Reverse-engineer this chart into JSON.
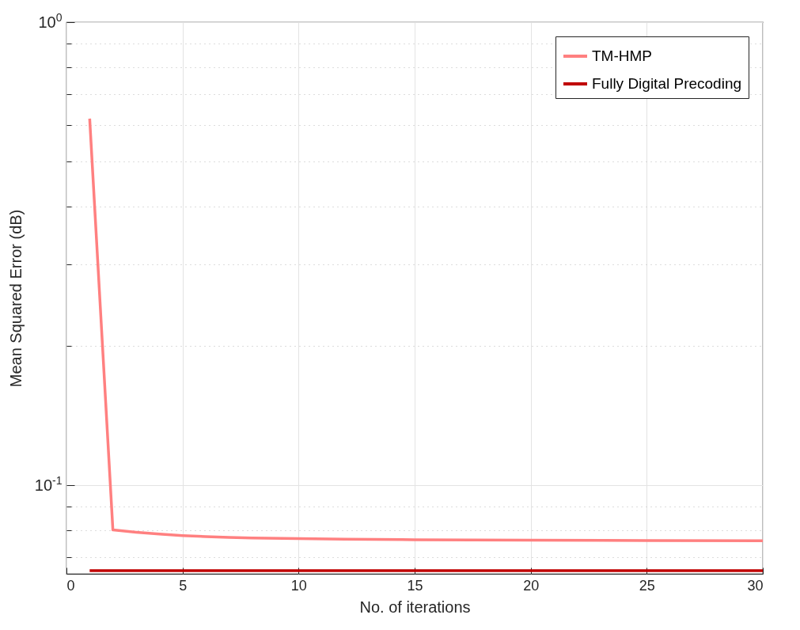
{
  "chart_data": {
    "type": "line",
    "xlabel": "No. of iterations",
    "ylabel": "Mean Squared Error (dB)",
    "x": [
      1,
      2,
      3,
      4,
      5,
      6,
      7,
      8,
      10,
      12,
      15,
      20,
      25,
      30
    ],
    "series": [
      {
        "name": "TM-HMP",
        "color": "#ff8080",
        "values": [
          0.619,
          0.0802,
          0.0793,
          0.0786,
          0.078,
          0.0776,
          0.0773,
          0.0771,
          0.0768,
          0.0766,
          0.0764,
          0.0762,
          0.0761,
          0.076
        ]
      },
      {
        "name": "Fully Digital Precoding",
        "color": "#c00000",
        "values": [
          0.0655,
          0.0655,
          0.0655,
          0.0655,
          0.0655,
          0.0655,
          0.0655,
          0.0655,
          0.0655,
          0.0655,
          0.0655,
          0.0655,
          0.0655,
          0.0655
        ]
      }
    ],
    "xlim": [
      0,
      30
    ],
    "xticks": [
      0,
      5,
      10,
      15,
      20,
      25,
      30
    ],
    "ylim": [
      0.0645,
      1
    ],
    "log": true,
    "yticks": [
      {
        "value": 0.07,
        "label": null
      },
      {
        "value": 0.08,
        "label": null
      },
      {
        "value": 0.09,
        "label": null
      },
      {
        "value": 0.1,
        "label": "10$^{-1}$"
      },
      {
        "value": 0.2,
        "label": null
      },
      {
        "value": 0.3,
        "label": null
      },
      {
        "value": 0.4,
        "label": null
      },
      {
        "value": 0.5,
        "label": null
      },
      {
        "value": 0.6,
        "label": null
      },
      {
        "value": 0.7,
        "label": null
      },
      {
        "value": 0.8,
        "label": null
      },
      {
        "value": 0.9,
        "label": null
      },
      {
        "value": 1,
        "label": "10$^{0}$"
      }
    ],
    "grid": true,
    "legend": "top right",
    "line_style": "solid",
    "marker": "none"
  }
}
